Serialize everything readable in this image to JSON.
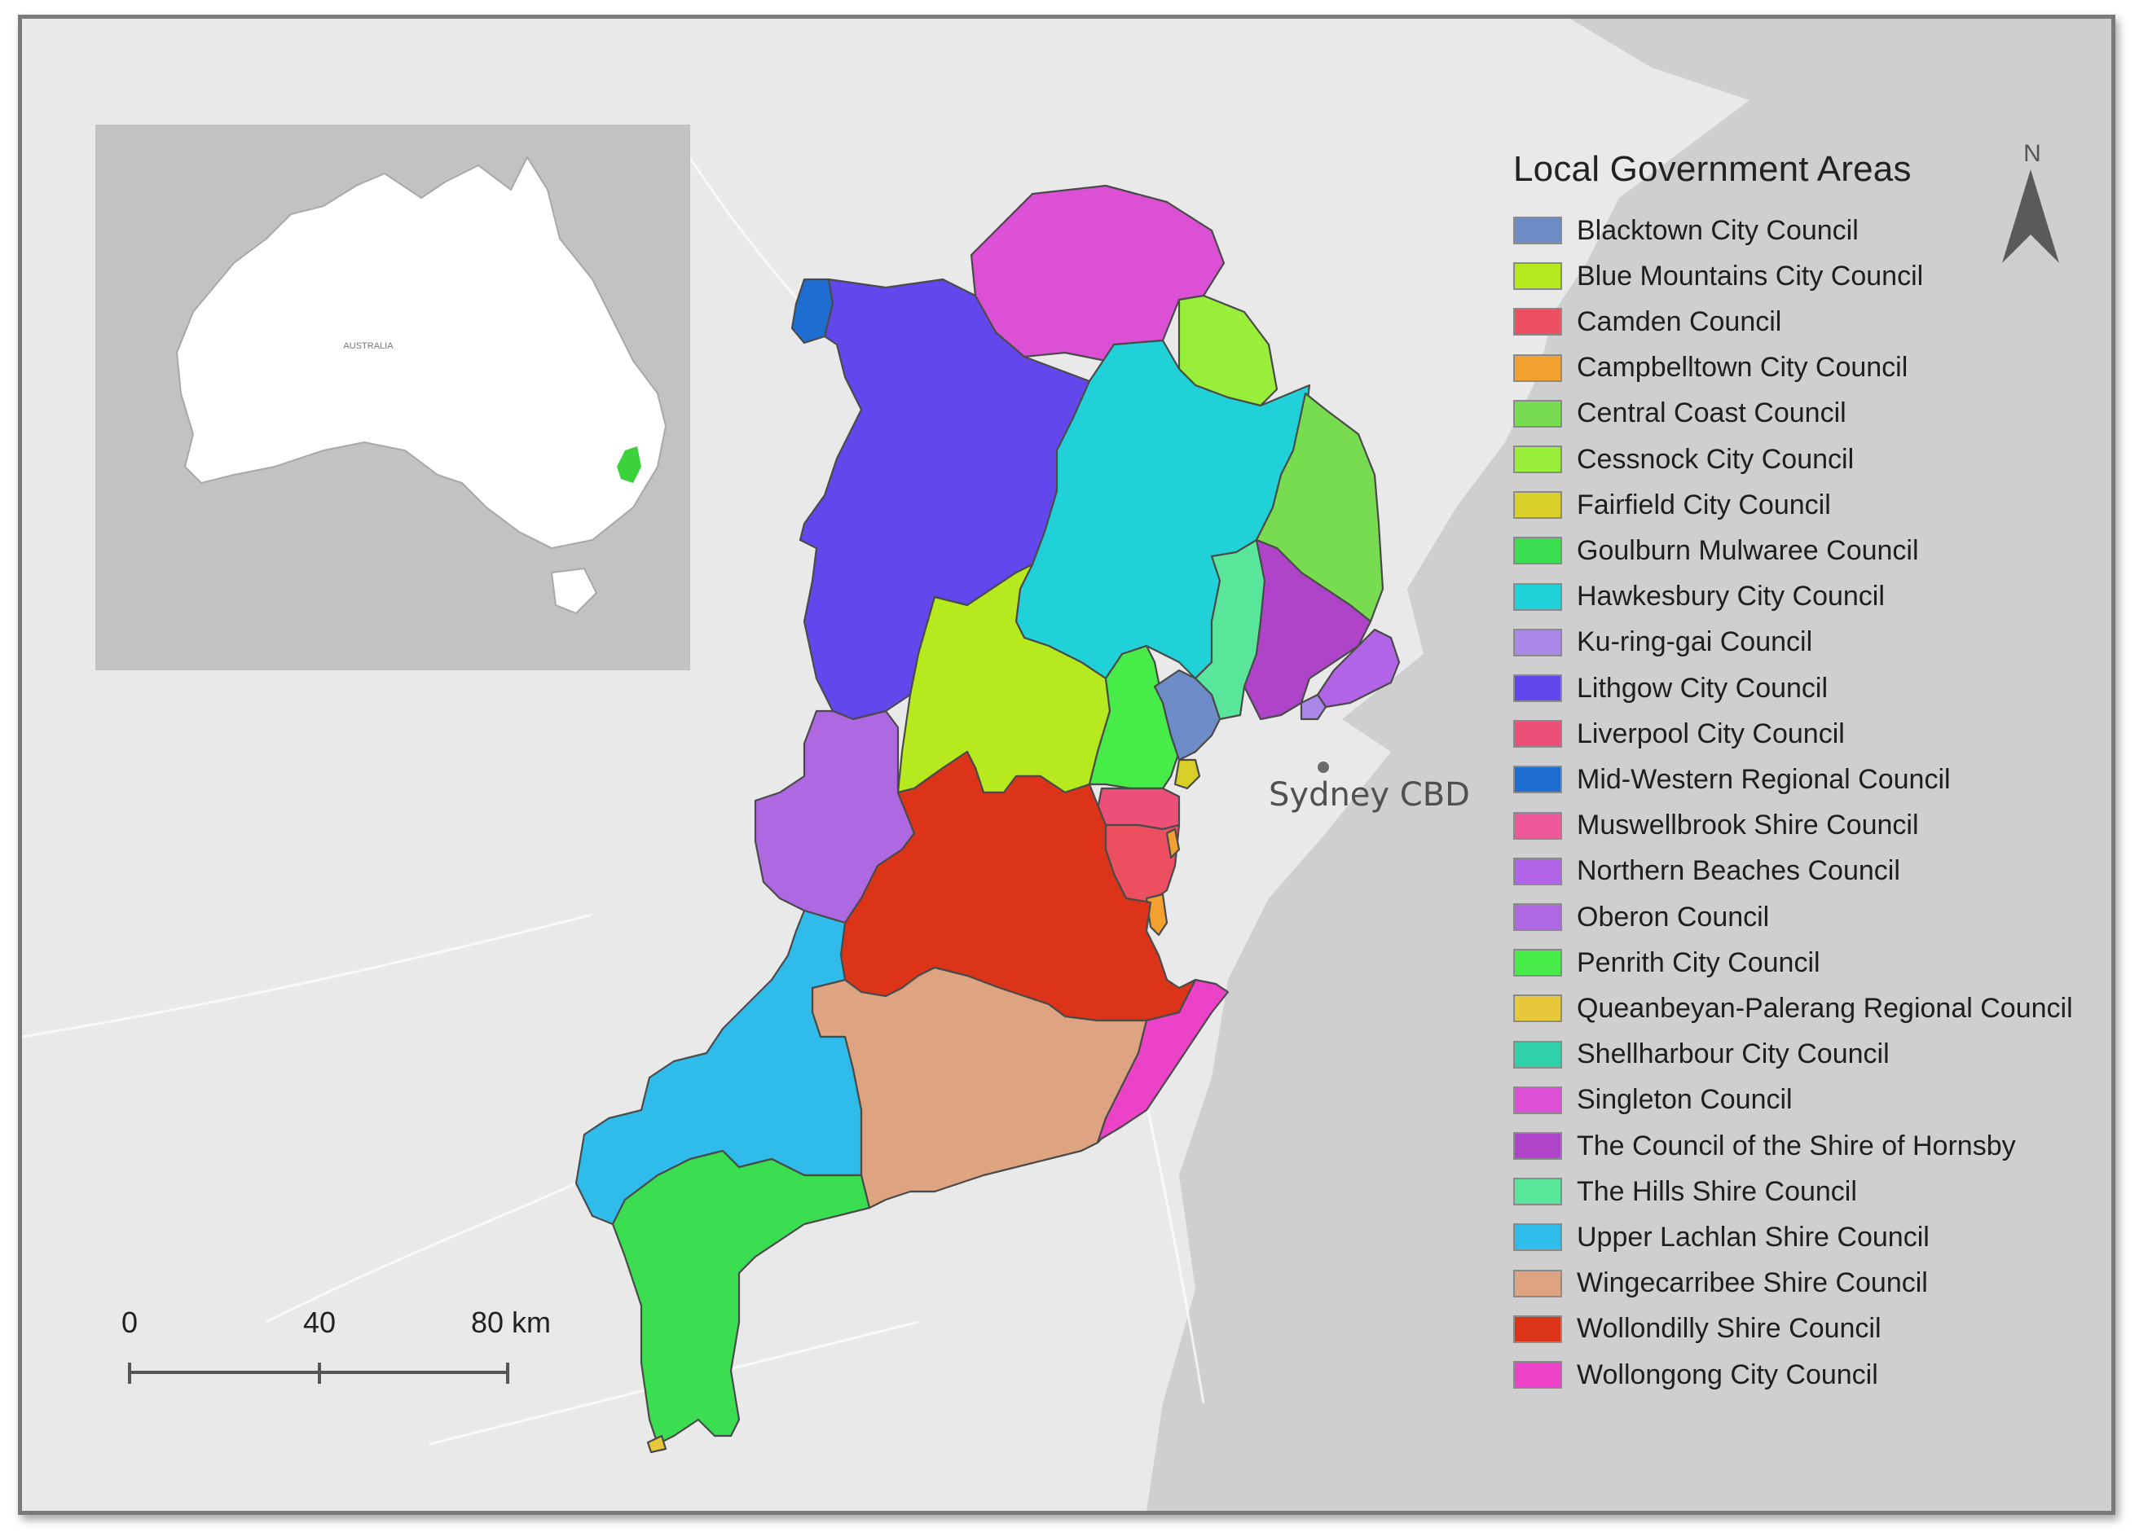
{
  "legend": {
    "title": "Local Government Areas",
    "items": [
      {
        "label": "Blacktown City Council",
        "color": "#6e8cc8"
      },
      {
        "label": "Blue Mountains City Council",
        "color": "#b6ea1e"
      },
      {
        "label": "Camden Council",
        "color": "#ec5060"
      },
      {
        "label": "Campbelltown City Council",
        "color": "#f2a030"
      },
      {
        "label": "Central Coast Council",
        "color": "#78dc50"
      },
      {
        "label": "Cessnock City Council",
        "color": "#98ee38"
      },
      {
        "label": "Fairfield City Council",
        "color": "#d8d028"
      },
      {
        "label": "Goulburn Mulwaree Council",
        "color": "#3ade50"
      },
      {
        "label": "Hawkesbury City Council",
        "color": "#20d2d8"
      },
      {
        "label": "Ku-ring-gai Council",
        "color": "#aa88e8"
      },
      {
        "label": "Lithgow City Council",
        "color": "#6248ec"
      },
      {
        "label": "Liverpool City Council",
        "color": "#ec5078"
      },
      {
        "label": "Mid-Western Regional Council",
        "color": "#1e6ed2"
      },
      {
        "label": "Muswellbrook Shire Council",
        "color": "#ec5898"
      },
      {
        "label": "Northern Beaches Council",
        "color": "#b264e6"
      },
      {
        "label": "Oberon Council",
        "color": "#ae68e2"
      },
      {
        "label": "Penrith City Council",
        "color": "#48ec48"
      },
      {
        "label": "Queanbeyan-Palerang Regional Council",
        "color": "#e6c83a"
      },
      {
        "label": "Shellharbour City Council",
        "color": "#30d0a8"
      },
      {
        "label": "Singleton Council",
        "color": "#dc50d6"
      },
      {
        "label": "The Council of the Shire of Hornsby",
        "color": "#b044c8"
      },
      {
        "label": "The Hills Shire Council",
        "color": "#5ae69a"
      },
      {
        "label": "Upper Lachlan Shire Council",
        "color": "#30bcea"
      },
      {
        "label": "Wingecarribee Shire Council",
        "color": "#dea482"
      },
      {
        "label": "Wollondilly Shire Council",
        "color": "#dc3418"
      },
      {
        "label": "Wollongong City Council",
        "color": "#ec42c8"
      }
    ]
  },
  "place_label": "Sydney CBD",
  "north_arrow_label": "N",
  "scale_bar": {
    "labels": [
      "0",
      "40",
      "80 km"
    ]
  },
  "inset": {
    "country_label": "AUSTRALIA"
  }
}
